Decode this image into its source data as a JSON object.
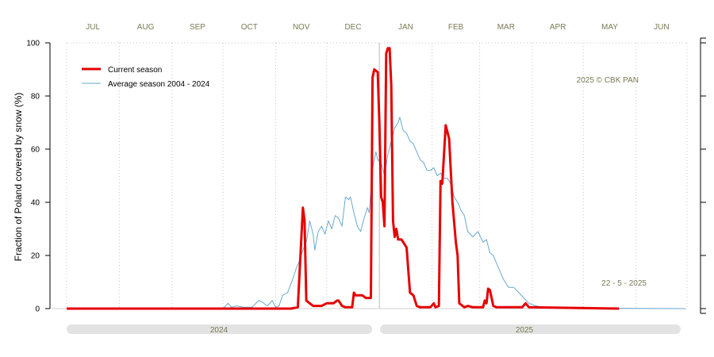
{
  "chart_data": {
    "type": "line",
    "ylabel": "Fraction of  Poland  covered by snow (%)",
    "ylim": [
      0,
      100
    ],
    "y_ticks": [
      "0",
      "20",
      "40",
      "60",
      "80",
      "100"
    ],
    "months": [
      "JUL",
      "AUG",
      "SEP",
      "OCT",
      "NOV",
      "DEC",
      "JAN",
      "FEB",
      "MAR",
      "APR",
      "MAY",
      "JUN"
    ],
    "years": [
      "2024",
      "2025"
    ],
    "copyright": "2025  © CBK PAN",
    "date_note": "22 - 5 - 2025",
    "grid": true,
    "legend_position": "top-left",
    "series": [
      {
        "name": "Current season",
        "color": "#e60000",
        "points": [
          [
            "2024-07-01",
            0
          ],
          [
            "2024-11-10",
            0
          ],
          [
            "2024-11-14",
            0.5
          ],
          [
            "2024-11-17",
            38
          ],
          [
            "2024-11-18",
            33
          ],
          [
            "2024-11-19",
            3
          ],
          [
            "2024-11-21",
            2
          ],
          [
            "2024-11-23",
            1
          ],
          [
            "2024-11-28",
            1
          ],
          [
            "2024-12-01",
            2
          ],
          [
            "2024-12-05",
            2
          ],
          [
            "2024-12-07",
            3
          ],
          [
            "2024-12-08",
            3
          ],
          [
            "2024-12-10",
            1
          ],
          [
            "2024-12-12",
            0.5
          ],
          [
            "2024-12-16",
            0.5
          ],
          [
            "2024-12-17",
            6
          ],
          [
            "2024-12-18",
            5
          ],
          [
            "2024-12-22",
            5
          ],
          [
            "2024-12-24",
            4
          ],
          [
            "2024-12-27",
            4
          ],
          [
            "2024-12-28",
            87
          ],
          [
            "2024-12-29",
            90
          ],
          [
            "2024-12-31",
            89
          ],
          [
            "2025-01-01",
            70
          ],
          [
            "2025-01-02",
            42
          ],
          [
            "2025-01-03",
            40
          ],
          [
            "2025-01-04",
            31
          ],
          [
            "2025-01-05",
            96
          ],
          [
            "2025-01-06",
            98
          ],
          [
            "2025-01-07",
            98
          ],
          [
            "2025-01-08",
            84
          ],
          [
            "2025-01-09",
            33
          ],
          [
            "2025-01-10",
            27
          ],
          [
            "2025-01-11",
            30
          ],
          [
            "2025-01-12",
            26
          ],
          [
            "2025-01-14",
            26
          ],
          [
            "2025-01-17",
            23
          ],
          [
            "2025-01-19",
            6
          ],
          [
            "2025-01-21",
            5
          ],
          [
            "2025-01-23",
            1
          ],
          [
            "2025-01-25",
            0.5
          ],
          [
            "2025-01-31",
            0.5
          ],
          [
            "2025-02-02",
            2
          ],
          [
            "2025-02-03",
            0.5
          ],
          [
            "2025-02-05",
            1
          ],
          [
            "2025-02-06",
            48
          ],
          [
            "2025-02-07",
            47
          ],
          [
            "2025-02-09",
            69
          ],
          [
            "2025-02-11",
            64
          ],
          [
            "2025-02-13",
            40
          ],
          [
            "2025-02-15",
            25
          ],
          [
            "2025-02-16",
            20
          ],
          [
            "2025-02-17",
            2
          ],
          [
            "2025-02-20",
            0.5
          ],
          [
            "2025-02-22",
            1
          ],
          [
            "2025-02-25",
            0.5
          ],
          [
            "2025-03-03",
            0.5
          ],
          [
            "2025-03-04",
            3
          ],
          [
            "2025-03-05",
            2
          ],
          [
            "2025-03-06",
            7.5
          ],
          [
            "2025-03-07",
            7
          ],
          [
            "2025-03-09",
            1
          ],
          [
            "2025-03-11",
            0.5
          ],
          [
            "2025-03-26",
            0.5
          ],
          [
            "2025-03-28",
            2
          ],
          [
            "2025-03-30",
            0.5
          ],
          [
            "2025-05-22",
            0
          ]
        ]
      },
      {
        "name": "Average season 2004 - 2024",
        "color": "#6aa8d0",
        "points": [
          [
            "2024-07-01",
            0
          ],
          [
            "2024-10-01",
            0
          ],
          [
            "2024-10-04",
            2
          ],
          [
            "2024-10-06",
            0.5
          ],
          [
            "2024-10-09",
            1
          ],
          [
            "2024-10-13",
            0.5
          ],
          [
            "2024-10-18",
            0.5
          ],
          [
            "2024-10-22",
            3
          ],
          [
            "2024-10-24",
            2.5
          ],
          [
            "2024-10-27",
            1
          ],
          [
            "2024-10-30",
            3
          ],
          [
            "2024-11-01",
            0.5
          ],
          [
            "2024-11-03",
            1
          ],
          [
            "2024-11-05",
            5
          ],
          [
            "2024-11-08",
            6
          ],
          [
            "2024-11-11",
            11
          ],
          [
            "2024-11-13",
            15
          ],
          [
            "2024-11-15",
            18
          ],
          [
            "2024-11-17",
            22
          ],
          [
            "2024-11-19",
            25
          ],
          [
            "2024-11-21",
            33
          ],
          [
            "2024-11-23",
            28
          ],
          [
            "2024-11-24",
            22
          ],
          [
            "2024-11-26",
            29
          ],
          [
            "2024-11-28",
            31
          ],
          [
            "2024-11-30",
            28
          ],
          [
            "2024-12-02",
            33
          ],
          [
            "2024-12-04",
            30
          ],
          [
            "2024-12-06",
            35
          ],
          [
            "2024-12-08",
            34
          ],
          [
            "2024-12-10",
            31
          ],
          [
            "2024-12-12",
            42
          ],
          [
            "2024-12-14",
            41
          ],
          [
            "2024-12-15",
            42
          ],
          [
            "2024-12-17",
            36
          ],
          [
            "2024-12-19",
            31
          ],
          [
            "2024-12-21",
            29
          ],
          [
            "2024-12-23",
            34
          ],
          [
            "2024-12-25",
            38
          ],
          [
            "2024-12-26",
            36
          ],
          [
            "2024-12-28",
            53
          ],
          [
            "2024-12-30",
            59
          ],
          [
            "2024-12-31",
            56
          ],
          [
            "2025-01-02",
            55
          ],
          [
            "2025-01-04",
            50
          ],
          [
            "2025-01-06",
            58
          ],
          [
            "2025-01-08",
            63
          ],
          [
            "2025-01-10",
            68
          ],
          [
            "2025-01-12",
            70
          ],
          [
            "2025-01-13",
            72
          ],
          [
            "2025-01-15",
            67
          ],
          [
            "2025-01-17",
            66
          ],
          [
            "2025-01-19",
            63
          ],
          [
            "2025-01-21",
            62
          ],
          [
            "2025-01-23",
            59
          ],
          [
            "2025-01-25",
            56
          ],
          [
            "2025-01-27",
            55
          ],
          [
            "2025-01-29",
            52
          ],
          [
            "2025-01-31",
            52
          ],
          [
            "2025-02-02",
            53
          ],
          [
            "2025-02-04",
            50
          ],
          [
            "2025-02-06",
            51
          ],
          [
            "2025-02-08",
            49
          ],
          [
            "2025-02-10",
            49
          ],
          [
            "2025-02-12",
            47
          ],
          [
            "2025-02-14",
            42
          ],
          [
            "2025-02-16",
            40
          ],
          [
            "2025-02-18",
            37
          ],
          [
            "2025-02-20",
            35
          ],
          [
            "2025-02-22",
            29
          ],
          [
            "2025-02-25",
            27
          ],
          [
            "2025-02-28",
            29
          ],
          [
            "2025-03-03",
            25
          ],
          [
            "2025-03-05",
            26
          ],
          [
            "2025-03-07",
            21
          ],
          [
            "2025-03-09",
            20
          ],
          [
            "2025-03-11",
            17
          ],
          [
            "2025-03-13",
            14
          ],
          [
            "2025-03-15",
            11
          ],
          [
            "2025-03-18",
            8
          ],
          [
            "2025-03-21",
            8
          ],
          [
            "2025-03-24",
            6
          ],
          [
            "2025-03-27",
            4
          ],
          [
            "2025-03-30",
            2
          ],
          [
            "2025-04-03",
            1
          ],
          [
            "2025-04-08",
            0.5
          ],
          [
            "2025-04-20",
            0.2
          ],
          [
            "2025-06-30",
            0
          ]
        ]
      }
    ]
  }
}
